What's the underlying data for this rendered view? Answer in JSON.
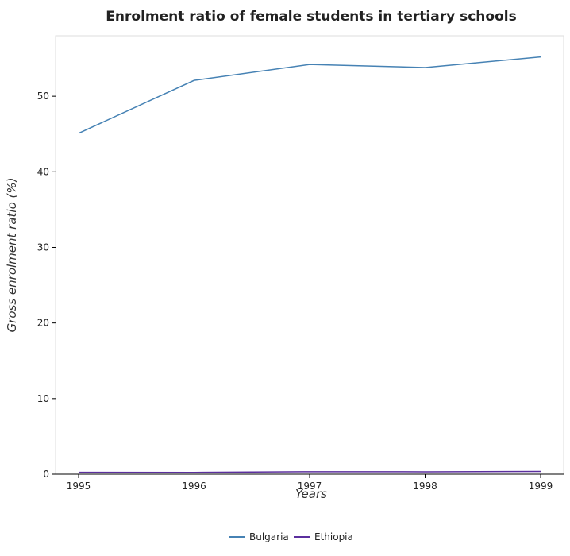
{
  "chart_data": {
    "type": "line",
    "title": "Enrolment ratio of female students in tertiary schools",
    "xlabel": "Years",
    "ylabel": "Gross enrolment ratio (%)",
    "categories": [
      "1995",
      "1996",
      "1997",
      "1998",
      "1999"
    ],
    "yticks": [
      "0",
      "10",
      "20",
      "30",
      "40",
      "50"
    ],
    "ylim": [
      0,
      58
    ],
    "grid": false,
    "legend_position": "bottom",
    "series": [
      {
        "name": "Bulgaria",
        "color": "#4682b4",
        "values": [
          45.1,
          52.1,
          54.2,
          53.8,
          55.2
        ]
      },
      {
        "name": "Ethiopia",
        "color": "#5b2f9e",
        "values": [
          0.25,
          0.24,
          0.33,
          0.32,
          0.37
        ]
      }
    ]
  }
}
